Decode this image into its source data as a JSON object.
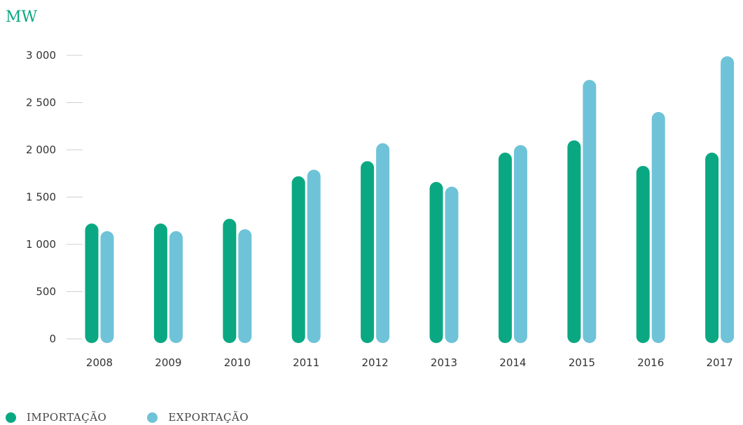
{
  "chart_data": {
    "type": "bar",
    "unit_label": "MW",
    "categories": [
      "2008",
      "2009",
      "2010",
      "2011",
      "2012",
      "2013",
      "2014",
      "2015",
      "2016",
      "2017"
    ],
    "series": [
      {
        "name": "IMPORTAÇÃO",
        "color": "#0aa882",
        "values": [
          1220,
          1220,
          1270,
          1720,
          1880,
          1660,
          1970,
          2100,
          1830,
          1970
        ]
      },
      {
        "name": "EXPORTAÇÃO",
        "color": "#6fc3d8",
        "values": [
          1140,
          1140,
          1160,
          1790,
          2070,
          1610,
          2050,
          2740,
          2400,
          2990
        ]
      }
    ],
    "yticks": [
      "0",
      "500",
      "1 000",
      "1 500",
      "2 000",
      "2 500",
      "3 000"
    ],
    "ytick_values": [
      0,
      500,
      1000,
      1500,
      2000,
      2500,
      3000
    ],
    "ylim": [
      0,
      3000
    ],
    "grid": false,
    "legend_position": "bottom-left"
  }
}
